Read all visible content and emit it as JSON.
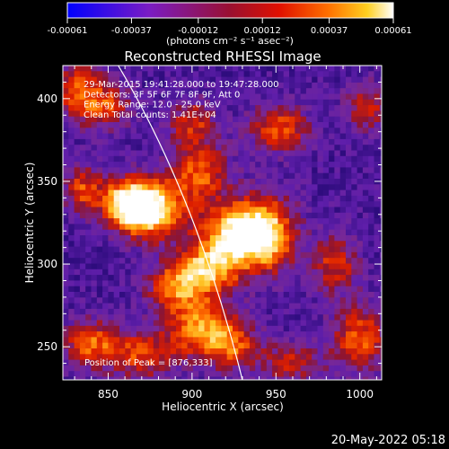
{
  "chart_data": {
    "type": "heatmap",
    "title": "Reconstructed RHESSI Image",
    "xlabel": "Heliocentric X (arcsec)",
    "ylabel": "Heliocentric Y (arcsec)",
    "xlim": [
      823,
      1013
    ],
    "ylim": [
      230,
      420
    ],
    "x_ticks": [
      850,
      900,
      950,
      1000
    ],
    "y_ticks": [
      250,
      300,
      350,
      400
    ],
    "colorbar": {
      "range": [
        -0.00061,
        0.00061
      ],
      "tick_values": [
        -0.00061,
        -0.00037,
        -0.00012,
        0.00012,
        0.00037,
        0.00061
      ],
      "tick_labels": [
        "-0.00061",
        "-0.00037",
        "-0.00012",
        "0.00012",
        "0.00037",
        "0.00061"
      ],
      "units_label": "(photons cm⁻² s⁻¹ asec⁻²)"
    },
    "info_lines": [
      "29-Mar-2015 19:41:28.000 to 19:47:28.000",
      "Detectors: 3F 5F 6F 7F 8F 9F, Att 0",
      "Energy Range: 12.0 - 25.0 keV",
      "Clean     Total counts: 1.41E+04"
    ],
    "peak_label": "Position of Peak = [876,333]",
    "peak": [
      876,
      333
    ],
    "sources": [
      {
        "x": 876,
        "y": 333,
        "amp": 1.0,
        "sx": 13,
        "sy": 12
      },
      {
        "x": 860,
        "y": 337,
        "amp": 0.75,
        "sx": 10,
        "sy": 10
      },
      {
        "x": 927,
        "y": 318,
        "amp": 0.9,
        "sx": 16,
        "sy": 13
      },
      {
        "x": 945,
        "y": 318,
        "amp": 0.6,
        "sx": 12,
        "sy": 16
      },
      {
        "x": 908,
        "y": 296,
        "amp": 0.7,
        "sx": 14,
        "sy": 10
      },
      {
        "x": 905,
        "y": 355,
        "amp": 0.55,
        "sx": 12,
        "sy": 12
      },
      {
        "x": 952,
        "y": 382,
        "amp": 0.55,
        "sx": 12,
        "sy": 10
      },
      {
        "x": 832,
        "y": 405,
        "amp": 0.55,
        "sx": 10,
        "sy": 12
      },
      {
        "x": 850,
        "y": 395,
        "amp": 0.45,
        "sx": 10,
        "sy": 10
      },
      {
        "x": 835,
        "y": 345,
        "amp": 0.5,
        "sx": 8,
        "sy": 10
      },
      {
        "x": 840,
        "y": 252,
        "amp": 0.55,
        "sx": 12,
        "sy": 10
      },
      {
        "x": 870,
        "y": 245,
        "amp": 0.5,
        "sx": 14,
        "sy": 10
      },
      {
        "x": 905,
        "y": 262,
        "amp": 0.65,
        "sx": 14,
        "sy": 12
      },
      {
        "x": 890,
        "y": 285,
        "amp": 0.5,
        "sx": 12,
        "sy": 10
      },
      {
        "x": 925,
        "y": 250,
        "amp": 0.5,
        "sx": 12,
        "sy": 10
      },
      {
        "x": 1000,
        "y": 255,
        "amp": 0.55,
        "sx": 12,
        "sy": 14
      },
      {
        "x": 985,
        "y": 300,
        "amp": 0.45,
        "sx": 10,
        "sy": 12
      },
      {
        "x": 1005,
        "y": 395,
        "amp": 0.4,
        "sx": 10,
        "sy": 10
      },
      {
        "x": 900,
        "y": 385,
        "amp": 0.45,
        "sx": 10,
        "sy": 10
      },
      {
        "x": 960,
        "y": 240,
        "amp": 0.4,
        "sx": 12,
        "sy": 8
      }
    ],
    "limb_line": [
      [
        856,
        420
      ],
      [
        903,
        340
      ],
      [
        930,
        230
      ]
    ]
  },
  "footer": {
    "date": "20-May-2022 05:18"
  }
}
